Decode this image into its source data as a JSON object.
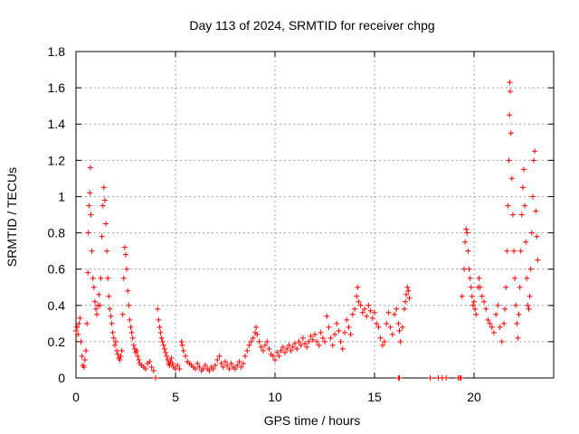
{
  "chart_data": {
    "type": "scatter",
    "title": "Day 113 of 2024, SRMTID for receiver chpg",
    "xlabel": "GPS time / hours",
    "ylabel": "SRMTID / TECUs",
    "xlim": [
      0,
      24
    ],
    "ylim": [
      0,
      1.8
    ],
    "x_ticks": [
      0,
      5,
      10,
      15,
      20
    ],
    "x_tick_labels": [
      "0",
      "5",
      "10",
      "15",
      "20"
    ],
    "y_ticks": [
      0,
      0.2,
      0.4,
      0.6,
      0.8,
      1.0,
      1.2,
      1.4,
      1.6,
      1.8
    ],
    "y_tick_labels": [
      "0",
      "0.2",
      "0.4",
      "0.6",
      "0.8",
      "1",
      "1.2",
      "1.4",
      "1.6",
      "1.8"
    ],
    "grid": true,
    "marker": "+",
    "color": "#ff0000",
    "series": [
      {
        "name": "SRMTID",
        "points": [
          [
            0.0,
            0.26
          ],
          [
            0.05,
            0.28
          ],
          [
            0.1,
            0.24
          ],
          [
            0.15,
            0.3
          ],
          [
            0.2,
            0.33
          ],
          [
            0.25,
            0.2
          ],
          [
            0.3,
            0.12
          ],
          [
            0.35,
            0.07
          ],
          [
            0.4,
            0.06
          ],
          [
            0.45,
            0.1
          ],
          [
            0.5,
            0.15
          ],
          [
            0.55,
            0.3
          ],
          [
            0.6,
            0.58
          ],
          [
            0.62,
            0.8
          ],
          [
            0.65,
            0.95
          ],
          [
            0.7,
            1.02
          ],
          [
            0.72,
            1.16
          ],
          [
            0.75,
            0.9
          ],
          [
            0.8,
            0.7
          ],
          [
            0.85,
            0.55
          ],
          [
            0.9,
            0.5
          ],
          [
            0.95,
            0.42
          ],
          [
            1.0,
            0.38
          ],
          [
            1.05,
            0.35
          ],
          [
            1.1,
            0.4
          ],
          [
            1.15,
            0.46
          ],
          [
            1.2,
            0.4
          ],
          [
            1.25,
            0.55
          ],
          [
            1.3,
            0.78
          ],
          [
            1.35,
            0.95
          ],
          [
            1.4,
            1.05
          ],
          [
            1.45,
            0.98
          ],
          [
            1.5,
            0.85
          ],
          [
            1.55,
            0.7
          ],
          [
            1.6,
            0.55
          ],
          [
            1.65,
            0.45
          ],
          [
            1.7,
            0.38
          ],
          [
            1.75,
            0.34
          ],
          [
            1.8,
            0.3
          ],
          [
            1.85,
            0.25
          ],
          [
            1.9,
            0.22
          ],
          [
            1.95,
            0.18
          ],
          [
            2.0,
            0.2
          ],
          [
            2.05,
            0.15
          ],
          [
            2.1,
            0.13
          ],
          [
            2.15,
            0.11
          ],
          [
            2.2,
            0.1
          ],
          [
            2.25,
            0.12
          ],
          [
            2.3,
            0.15
          ],
          [
            2.35,
            0.35
          ],
          [
            2.4,
            0.55
          ],
          [
            2.45,
            0.72
          ],
          [
            2.5,
            0.68
          ],
          [
            2.55,
            0.6
          ],
          [
            2.6,
            0.48
          ],
          [
            2.65,
            0.4
          ],
          [
            2.7,
            0.32
          ],
          [
            2.75,
            0.28
          ],
          [
            2.8,
            0.25
          ],
          [
            2.85,
            0.22
          ],
          [
            2.9,
            0.18
          ],
          [
            2.95,
            0.16
          ],
          [
            3.0,
            0.14
          ],
          [
            3.05,
            0.15
          ],
          [
            3.1,
            0.12
          ],
          [
            3.15,
            0.1
          ],
          [
            3.2,
            0.08
          ],
          [
            3.3,
            0.07
          ],
          [
            3.4,
            0.06
          ],
          [
            3.5,
            0.05
          ],
          [
            3.6,
            0.08
          ],
          [
            3.7,
            0.09
          ],
          [
            3.8,
            0.06
          ],
          [
            3.9,
            0.04
          ],
          [
            4.0,
            0.0
          ],
          [
            4.1,
            0.38
          ],
          [
            4.15,
            0.32
          ],
          [
            4.2,
            0.28
          ],
          [
            4.25,
            0.25
          ],
          [
            4.3,
            0.22
          ],
          [
            4.35,
            0.2
          ],
          [
            4.4,
            0.18
          ],
          [
            4.45,
            0.16
          ],
          [
            4.5,
            0.14
          ],
          [
            4.55,
            0.12
          ],
          [
            4.6,
            0.1
          ],
          [
            4.65,
            0.08
          ],
          [
            4.7,
            0.07
          ],
          [
            4.75,
            0.09
          ],
          [
            4.8,
            0.11
          ],
          [
            4.85,
            0.08
          ],
          [
            4.9,
            0.06
          ],
          [
            5.0,
            0.05
          ],
          [
            5.1,
            0.07
          ],
          [
            5.2,
            0.05
          ],
          [
            5.3,
            0.2
          ],
          [
            5.35,
            0.18
          ],
          [
            5.4,
            0.15
          ],
          [
            5.5,
            0.12
          ],
          [
            5.6,
            0.09
          ],
          [
            5.7,
            0.08
          ],
          [
            5.8,
            0.07
          ],
          [
            5.9,
            0.06
          ],
          [
            6.0,
            0.05
          ],
          [
            6.1,
            0.08
          ],
          [
            6.2,
            0.06
          ],
          [
            6.3,
            0.04
          ],
          [
            6.4,
            0.05
          ],
          [
            6.5,
            0.07
          ],
          [
            6.6,
            0.05
          ],
          [
            6.7,
            0.04
          ],
          [
            6.8,
            0.06
          ],
          [
            6.9,
            0.05
          ],
          [
            7.0,
            0.07
          ],
          [
            7.1,
            0.1
          ],
          [
            7.2,
            0.12
          ],
          [
            7.3,
            0.08
          ],
          [
            7.4,
            0.06
          ],
          [
            7.5,
            0.09
          ],
          [
            7.6,
            0.07
          ],
          [
            7.7,
            0.05
          ],
          [
            7.8,
            0.08
          ],
          [
            7.9,
            0.06
          ],
          [
            8.0,
            0.05
          ],
          [
            8.1,
            0.07
          ],
          [
            8.2,
            0.09
          ],
          [
            8.3,
            0.06
          ],
          [
            8.4,
            0.08
          ],
          [
            8.5,
            0.12
          ],
          [
            8.6,
            0.15
          ],
          [
            8.7,
            0.18
          ],
          [
            8.8,
            0.2
          ],
          [
            8.9,
            0.22
          ],
          [
            9.0,
            0.25
          ],
          [
            9.05,
            0.28
          ],
          [
            9.1,
            0.24
          ],
          [
            9.2,
            0.2
          ],
          [
            9.3,
            0.17
          ],
          [
            9.4,
            0.15
          ],
          [
            9.5,
            0.18
          ],
          [
            9.6,
            0.2
          ],
          [
            9.7,
            0.16
          ],
          [
            9.8,
            0.13
          ],
          [
            9.9,
            0.12
          ],
          [
            10.0,
            0.1
          ],
          [
            10.1,
            0.14
          ],
          [
            10.2,
            0.12
          ],
          [
            10.3,
            0.15
          ],
          [
            10.4,
            0.17
          ],
          [
            10.5,
            0.14
          ],
          [
            10.6,
            0.16
          ],
          [
            10.7,
            0.18
          ],
          [
            10.8,
            0.15
          ],
          [
            10.9,
            0.17
          ],
          [
            11.0,
            0.19
          ],
          [
            11.1,
            0.16
          ],
          [
            11.2,
            0.2
          ],
          [
            11.3,
            0.18
          ],
          [
            11.4,
            0.22
          ],
          [
            11.5,
            0.19
          ],
          [
            11.6,
            0.17
          ],
          [
            11.7,
            0.2
          ],
          [
            11.8,
            0.23
          ],
          [
            11.9,
            0.21
          ],
          [
            12.0,
            0.24
          ],
          [
            12.1,
            0.2
          ],
          [
            12.2,
            0.18
          ],
          [
            12.3,
            0.25
          ],
          [
            12.4,
            0.22
          ],
          [
            12.5,
            0.2
          ],
          [
            12.6,
            0.34
          ],
          [
            12.7,
            0.28
          ],
          [
            12.8,
            0.22
          ],
          [
            12.9,
            0.18
          ],
          [
            13.0,
            0.24
          ],
          [
            13.1,
            0.3
          ],
          [
            13.2,
            0.26
          ],
          [
            13.3,
            0.2
          ],
          [
            13.4,
            0.16
          ],
          [
            13.5,
            0.25
          ],
          [
            13.6,
            0.32
          ],
          [
            13.7,
            0.28
          ],
          [
            13.8,
            0.24
          ],
          [
            13.9,
            0.35
          ],
          [
            14.0,
            0.38
          ],
          [
            14.1,
            0.45
          ],
          [
            14.15,
            0.5
          ],
          [
            14.2,
            0.42
          ],
          [
            14.3,
            0.4
          ],
          [
            14.4,
            0.36
          ],
          [
            14.5,
            0.38
          ],
          [
            14.6,
            0.34
          ],
          [
            14.7,
            0.4
          ],
          [
            14.8,
            0.37
          ],
          [
            14.9,
            0.33
          ],
          [
            15.0,
            0.36
          ],
          [
            15.1,
            0.3
          ],
          [
            15.2,
            0.28
          ],
          [
            15.3,
            0.22
          ],
          [
            15.4,
            0.18
          ],
          [
            15.5,
            0.2
          ],
          [
            15.6,
            0.3
          ],
          [
            15.7,
            0.36
          ],
          [
            15.8,
            0.28
          ],
          [
            15.9,
            0.24
          ],
          [
            16.0,
            0.35
          ],
          [
            16.1,
            0.38
          ],
          [
            16.2,
            0.3
          ],
          [
            16.25,
            0.26
          ],
          [
            16.3,
            0.2
          ],
          [
            16.4,
            0.28
          ],
          [
            16.5,
            0.38
          ],
          [
            16.55,
            0.42
          ],
          [
            16.6,
            0.46
          ],
          [
            16.65,
            0.5
          ],
          [
            16.7,
            0.48
          ],
          [
            16.75,
            0.44
          ],
          [
            16.2,
            0.0
          ],
          [
            16.25,
            0.0
          ],
          [
            17.8,
            0.0
          ],
          [
            18.2,
            0.0
          ],
          [
            18.4,
            0.0
          ],
          [
            18.6,
            0.0
          ],
          [
            19.2,
            0.0
          ],
          [
            19.3,
            0.0
          ],
          [
            19.35,
            0.0
          ],
          [
            19.4,
            0.45
          ],
          [
            19.5,
            0.6
          ],
          [
            19.55,
            0.75
          ],
          [
            19.6,
            0.82
          ],
          [
            19.65,
            0.8
          ],
          [
            19.7,
            0.7
          ],
          [
            19.75,
            0.6
          ],
          [
            19.8,
            0.55
          ],
          [
            19.85,
            0.5
          ],
          [
            19.9,
            0.45
          ],
          [
            19.95,
            0.4
          ],
          [
            20.0,
            0.42
          ],
          [
            20.05,
            0.38
          ],
          [
            20.1,
            0.35
          ],
          [
            20.2,
            0.5
          ],
          [
            20.25,
            0.55
          ],
          [
            20.3,
            0.5
          ],
          [
            20.4,
            0.45
          ],
          [
            20.5,
            0.42
          ],
          [
            20.6,
            0.38
          ],
          [
            20.7,
            0.32
          ],
          [
            20.8,
            0.3
          ],
          [
            20.9,
            0.28
          ],
          [
            21.0,
            0.25
          ],
          [
            21.1,
            0.35
          ],
          [
            21.2,
            0.4
          ],
          [
            21.3,
            0.28
          ],
          [
            21.4,
            0.2
          ],
          [
            21.5,
            0.3
          ],
          [
            21.55,
            0.38
          ],
          [
            21.6,
            0.5
          ],
          [
            21.65,
            0.7
          ],
          [
            21.7,
            0.95
          ],
          [
            21.75,
            1.2
          ],
          [
            21.78,
            1.45
          ],
          [
            21.8,
            1.63
          ],
          [
            21.82,
            1.58
          ],
          [
            21.85,
            1.35
          ],
          [
            21.9,
            1.1
          ],
          [
            21.95,
            0.9
          ],
          [
            22.0,
            0.7
          ],
          [
            22.05,
            0.55
          ],
          [
            22.1,
            0.4
          ],
          [
            22.15,
            0.3
          ],
          [
            22.2,
            0.22
          ],
          [
            22.25,
            0.35
          ],
          [
            22.3,
            0.5
          ],
          [
            22.35,
            0.7
          ],
          [
            22.4,
            0.9
          ],
          [
            22.45,
            1.05
          ],
          [
            22.5,
            1.15
          ],
          [
            22.55,
            0.95
          ],
          [
            22.6,
            0.75
          ],
          [
            22.65,
            0.55
          ],
          [
            22.7,
            0.4
          ],
          [
            22.75,
            0.38
          ],
          [
            22.8,
            0.45
          ],
          [
            22.85,
            0.6
          ],
          [
            22.9,
            0.8
          ],
          [
            22.95,
            1.0
          ],
          [
            23.0,
            1.2
          ],
          [
            23.05,
            1.25
          ],
          [
            23.1,
            0.92
          ],
          [
            23.15,
            0.78
          ],
          [
            23.2,
            0.65
          ]
        ]
      }
    ]
  }
}
